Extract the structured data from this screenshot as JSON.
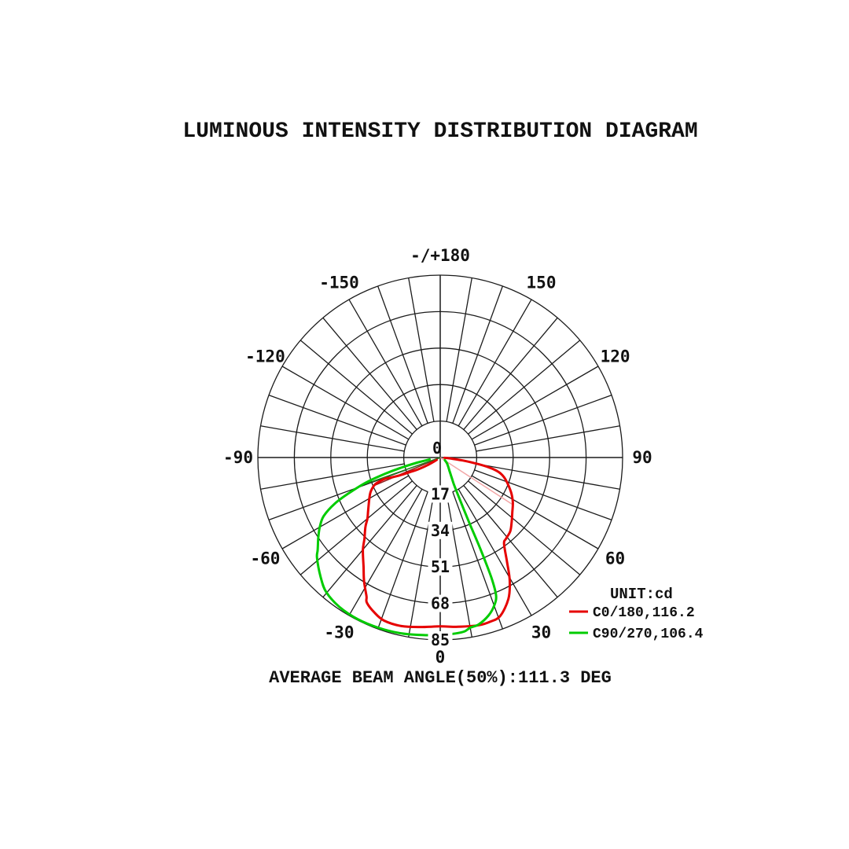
{
  "title": "LUMINOUS INTENSITY DISTRIBUTION DIAGRAM",
  "footer": "AVERAGE BEAM ANGLE(50%):111.3 DEG",
  "legend": {
    "unit_label": "UNIT:cd",
    "series": [
      {
        "label": "C0/180,116.2",
        "color": "#e60000"
      },
      {
        "label": "C90/270,106.4",
        "color": "#00cc00"
      }
    ]
  },
  "chart_data": {
    "type": "polar",
    "unit": "cd",
    "radial_ticks": [
      17,
      34,
      51,
      68,
      85
    ],
    "radial_max": 85,
    "center_label": "0",
    "spoke_step_deg": 10,
    "angle_labels": [
      {
        "angle": 180,
        "label": "-/+180"
      },
      {
        "angle": -150,
        "label": "-150"
      },
      {
        "angle": -120,
        "label": "-120"
      },
      {
        "angle": -90,
        "label": "-90"
      },
      {
        "angle": -60,
        "label": "-60"
      },
      {
        "angle": -30,
        "label": "-30"
      },
      {
        "angle": 0,
        "label": "0"
      },
      {
        "angle": 30,
        "label": "30"
      },
      {
        "angle": 60,
        "label": "60"
      },
      {
        "angle": 90,
        "label": "90"
      },
      {
        "angle": 120,
        "label": "120"
      },
      {
        "angle": 150,
        "label": "150"
      }
    ],
    "series": [
      {
        "name": "C0/180",
        "beam_angle_deg": 116.2,
        "color": "#e60000",
        "points": [
          [
            -55,
            2
          ],
          [
            -59,
            7
          ],
          [
            -62,
            12
          ],
          [
            -64,
            15
          ],
          [
            -66,
            20
          ],
          [
            -68,
            25
          ],
          [
            -69,
            27.4
          ],
          [
            -68.5,
            30.3
          ],
          [
            -67.4,
            33.1
          ],
          [
            -64,
            36
          ],
          [
            -60.3,
            38
          ],
          [
            -54,
            41.5
          ],
          [
            -50,
            44.3
          ],
          [
            -47.2,
            47.5
          ],
          [
            -43,
            51.8
          ],
          [
            -39.8,
            56.3
          ],
          [
            -35,
            62.3
          ],
          [
            -31.5,
            67.9
          ],
          [
            -28,
            73.2
          ],
          [
            -26.8,
            75.8
          ],
          [
            -23,
            78.5
          ],
          [
            -19,
            80.4
          ],
          [
            -13,
            80.6
          ],
          [
            -7,
            79.6
          ],
          [
            0,
            78.7
          ],
          [
            6,
            79.3
          ],
          [
            13,
            80.2
          ],
          [
            17,
            80
          ],
          [
            20.8,
            78.9
          ],
          [
            25.8,
            73.1
          ],
          [
            29.5,
            65.8
          ],
          [
            32.6,
            57.8
          ],
          [
            36.5,
            50
          ],
          [
            39,
            48.7
          ],
          [
            43.5,
            47.4
          ],
          [
            48,
            44.8
          ],
          [
            52.8,
            42.2
          ],
          [
            58,
            39.9
          ],
          [
            63,
            37.3
          ],
          [
            68.8,
            33.7
          ],
          [
            73,
            31
          ],
          [
            76.2,
            27.9
          ],
          [
            78.5,
            23.3
          ],
          [
            80.5,
            17
          ],
          [
            82.5,
            10.7
          ],
          [
            84.5,
            5
          ],
          [
            86,
            2
          ]
        ]
      },
      {
        "name": "C90/270",
        "beam_angle_deg": 106.4,
        "color": "#00cc00",
        "points": [
          [
            -80,
            5
          ],
          [
            -77.5,
            11
          ],
          [
            -75.4,
            18.9
          ],
          [
            -73.5,
            27
          ],
          [
            -71.5,
            36.1
          ],
          [
            -69,
            44.5
          ],
          [
            -66.5,
            53.3
          ],
          [
            -63.3,
            60.8
          ],
          [
            -60,
            64.8
          ],
          [
            -56.8,
            67.9
          ],
          [
            -53,
            71.5
          ],
          [
            -50.8,
            74.1
          ],
          [
            -45,
            78.8
          ],
          [
            -40.3,
            82.2
          ],
          [
            -34,
            84
          ],
          [
            -27,
            84.6
          ],
          [
            -20,
            84.4
          ],
          [
            -13,
            84
          ],
          [
            -6,
            83.2
          ],
          [
            0,
            82.7
          ],
          [
            5,
            82.3
          ],
          [
            8,
            81.8
          ],
          [
            10,
            80.5
          ],
          [
            13,
            79.8
          ],
          [
            17,
            77
          ],
          [
            20,
            73.5
          ],
          [
            22,
            69.5
          ],
          [
            23,
            62
          ],
          [
            23.5,
            52
          ],
          [
            23.8,
            43
          ],
          [
            24,
            34
          ],
          [
            24.5,
            26
          ],
          [
            25.5,
            19
          ],
          [
            27,
            14
          ],
          [
            30,
            10.5
          ],
          [
            35,
            7.5
          ],
          [
            42,
            5.5
          ],
          [
            50,
            4
          ],
          [
            60,
            2.5
          ]
        ]
      }
    ],
    "beam_rays": [
      {
        "angle": 57,
        "cd": 40,
        "color": "#f2a6a6"
      },
      {
        "angle": -67,
        "cd": 33,
        "color": "#8b1e1e"
      },
      {
        "angle": -70.5,
        "cd": 37,
        "color": "#1e7d1e"
      }
    ]
  }
}
